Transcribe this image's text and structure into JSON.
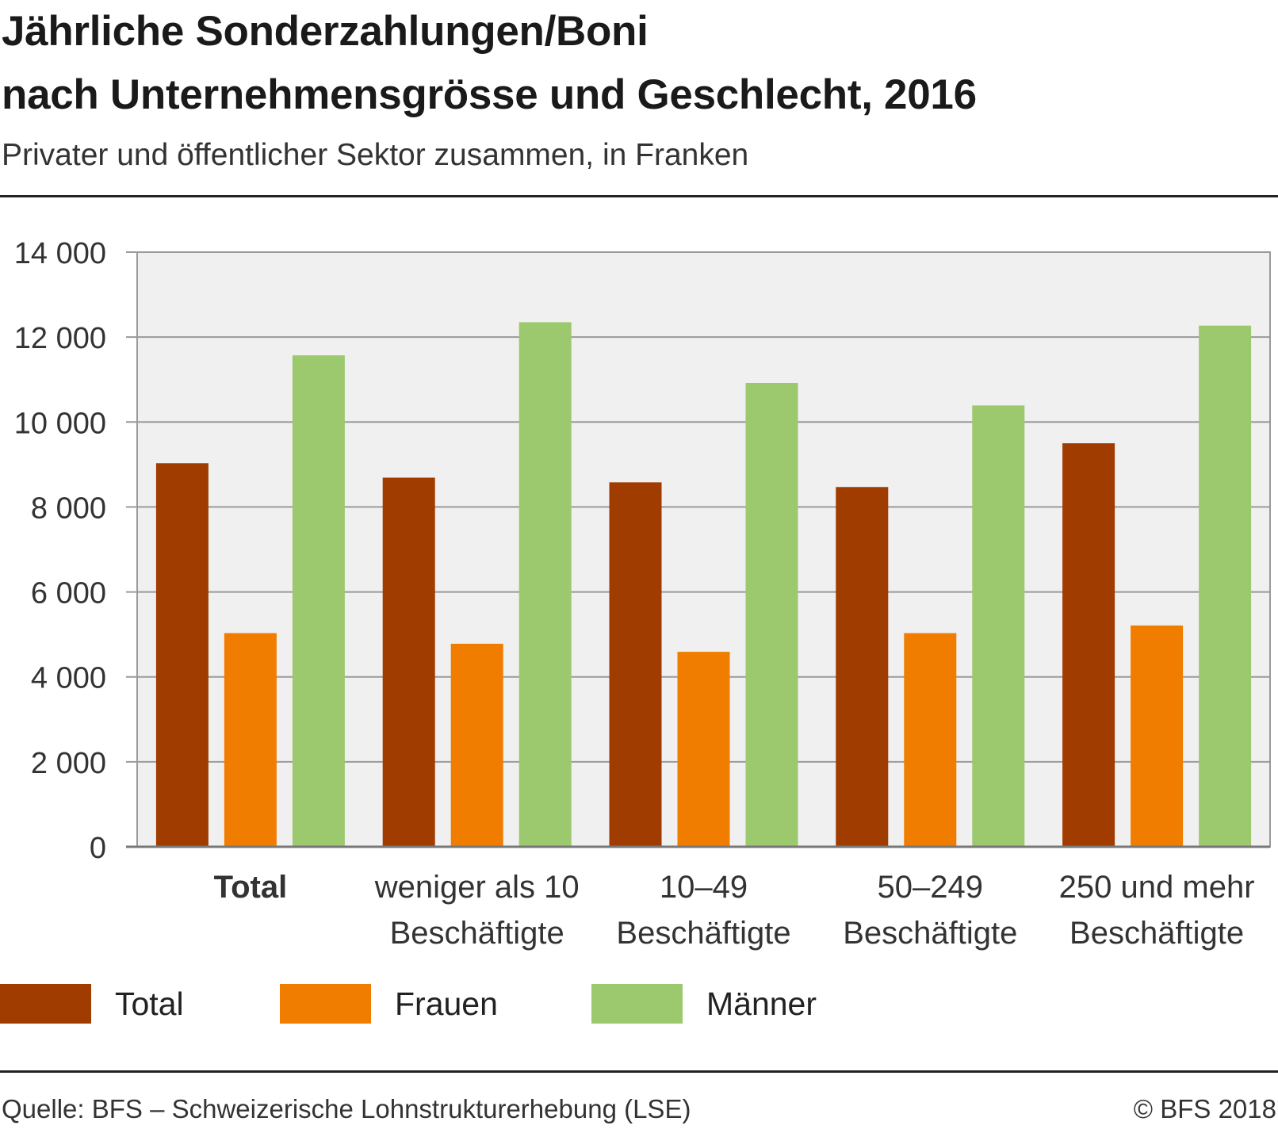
{
  "chart_data": {
    "type": "bar",
    "title_line1": "Jährliche Sonderzahlungen/Boni",
    "title_line2": "nach Unternehmensgrösse und Geschlecht, 2016",
    "subtitle": "Privater und öffentlicher Sektor zusammen, in Franken",
    "categories": [
      [
        "Total"
      ],
      [
        "weniger als 10",
        "Beschäftigte"
      ],
      [
        "10–49",
        "Beschäftigte"
      ],
      [
        "50–249",
        "Beschäftigte"
      ],
      [
        "250 und mehr",
        "Beschäftigte"
      ]
    ],
    "bold_category_index": 0,
    "series": [
      {
        "name": "Total",
        "color": "#a03c00",
        "values": [
          9030,
          8690,
          8580,
          8470,
          9500
        ]
      },
      {
        "name": "Frauen",
        "color": "#f07d00",
        "values": [
          5030,
          4780,
          4590,
          5030,
          5210
        ]
      },
      {
        "name": "Männer",
        "color": "#9dc96e",
        "values": [
          11570,
          12350,
          10920,
          10390,
          12270
        ]
      }
    ],
    "ylim": [
      0,
      14000
    ],
    "yticks": [
      0,
      2000,
      4000,
      6000,
      8000,
      10000,
      12000,
      14000
    ],
    "ytick_labels": [
      "0",
      "2 000",
      "4 000",
      "6 000",
      "8 000",
      "10 000",
      "12 000",
      "14 000"
    ],
    "grid": true,
    "plot_background": "#f0f0f0",
    "legend_position": "bottom",
    "xlabel": "",
    "ylabel": ""
  },
  "footer": {
    "source": "Quelle: BFS – Schweizerische Lohnstrukturerhebung (LSE)",
    "copyright": "© BFS 2018"
  }
}
